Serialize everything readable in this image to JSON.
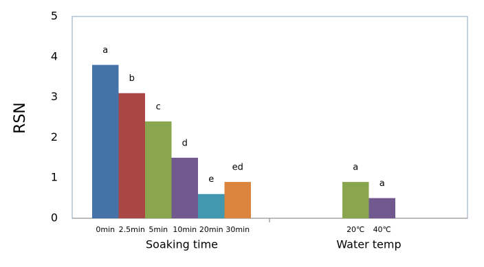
{
  "chart_data": {
    "type": "bar",
    "y_label": "RSN",
    "ylim": [
      0,
      5
    ],
    "yticks": [
      0,
      1,
      2,
      3,
      4,
      5
    ],
    "groups": [
      {
        "label": "Soaking time",
        "categories": [
          "0min",
          "2.5min",
          "5min",
          "10min",
          "20min",
          "30min"
        ],
        "values": [
          3.8,
          3.1,
          2.4,
          1.5,
          0.6,
          0.9
        ],
        "letters": [
          "a",
          "b",
          "c",
          "d",
          "e",
          "ed"
        ],
        "colors": [
          "#4572a7",
          "#aa4643",
          "#89a54e",
          "#71588f",
          "#4198af",
          "#db843d"
        ]
      },
      {
        "label": "Water temp",
        "categories": [
          "20℃",
          "40℃"
        ],
        "values": [
          0.9,
          0.5
        ],
        "letters": [
          "a",
          "a"
        ],
        "colors": [
          "#89a54e",
          "#71588f"
        ]
      }
    ]
  }
}
